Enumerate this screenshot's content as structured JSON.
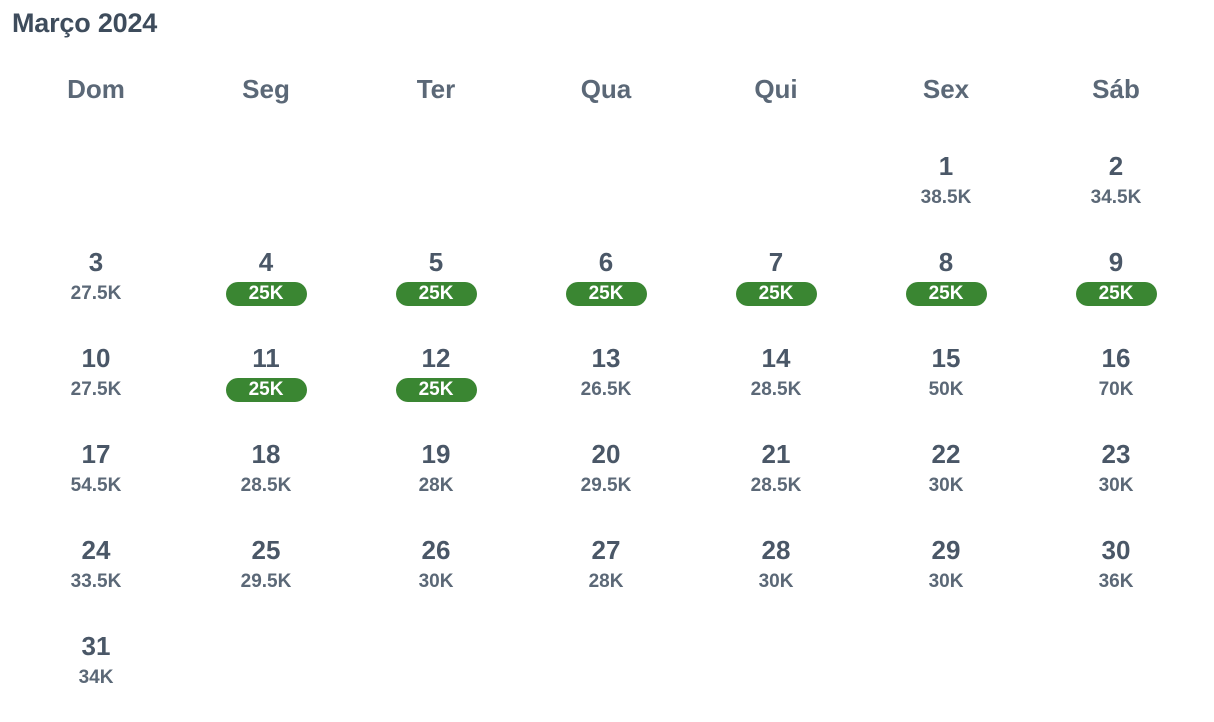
{
  "month_title": "Março 2024",
  "weekdays": [
    "Dom",
    "Seg",
    "Ter",
    "Qua",
    "Qui",
    "Sex",
    "Sáb"
  ],
  "colors": {
    "lowest_price_badge": "#3a8632",
    "text": "#4a5767"
  },
  "days": [
    {
      "day": "1",
      "price": "38.5K",
      "lowest": false
    },
    {
      "day": "2",
      "price": "34.5K",
      "lowest": false
    },
    {
      "day": "3",
      "price": "27.5K",
      "lowest": false
    },
    {
      "day": "4",
      "price": "25K",
      "lowest": true
    },
    {
      "day": "5",
      "price": "25K",
      "lowest": true
    },
    {
      "day": "6",
      "price": "25K",
      "lowest": true
    },
    {
      "day": "7",
      "price": "25K",
      "lowest": true
    },
    {
      "day": "8",
      "price": "25K",
      "lowest": true
    },
    {
      "day": "9",
      "price": "25K",
      "lowest": true
    },
    {
      "day": "10",
      "price": "27.5K",
      "lowest": false
    },
    {
      "day": "11",
      "price": "25K",
      "lowest": true
    },
    {
      "day": "12",
      "price": "25K",
      "lowest": true
    },
    {
      "day": "13",
      "price": "26.5K",
      "lowest": false
    },
    {
      "day": "14",
      "price": "28.5K",
      "lowest": false
    },
    {
      "day": "15",
      "price": "50K",
      "lowest": false
    },
    {
      "day": "16",
      "price": "70K",
      "lowest": false
    },
    {
      "day": "17",
      "price": "54.5K",
      "lowest": false
    },
    {
      "day": "18",
      "price": "28.5K",
      "lowest": false
    },
    {
      "day": "19",
      "price": "28K",
      "lowest": false
    },
    {
      "day": "20",
      "price": "29.5K",
      "lowest": false
    },
    {
      "day": "21",
      "price": "28.5K",
      "lowest": false
    },
    {
      "day": "22",
      "price": "30K",
      "lowest": false
    },
    {
      "day": "23",
      "price": "30K",
      "lowest": false
    },
    {
      "day": "24",
      "price": "33.5K",
      "lowest": false
    },
    {
      "day": "25",
      "price": "29.5K",
      "lowest": false
    },
    {
      "day": "26",
      "price": "30K",
      "lowest": false
    },
    {
      "day": "27",
      "price": "28K",
      "lowest": false
    },
    {
      "day": "28",
      "price": "30K",
      "lowest": false
    },
    {
      "day": "29",
      "price": "30K",
      "lowest": false
    },
    {
      "day": "30",
      "price": "36K",
      "lowest": false
    },
    {
      "day": "31",
      "price": "34K",
      "lowest": false
    }
  ]
}
